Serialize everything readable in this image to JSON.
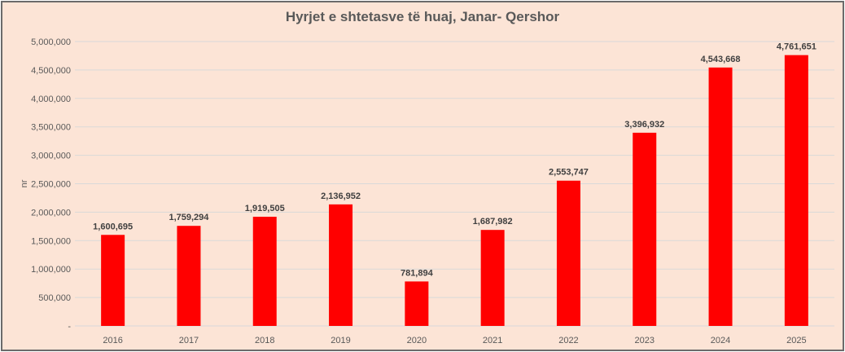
{
  "chart_data": {
    "type": "bar",
    "title": "Hyrjet e shtetasve të huaj, Janar- Qershor",
    "xlabel": "",
    "ylabel": "nr",
    "categories": [
      "2016",
      "2017",
      "2018",
      "2019",
      "2020",
      "2021",
      "2022",
      "2023",
      "2024",
      "2025"
    ],
    "values": [
      1600695,
      1759294,
      1919505,
      2136952,
      781894,
      1687982,
      2553747,
      3396932,
      4543668,
      4761651
    ],
    "value_labels": [
      "1,600,695",
      "1,759,294",
      "1,919,505",
      "2,136,952",
      "781,894",
      "1,687,982",
      "2,553,747",
      "3,396,932",
      "4,543,668",
      "4,761,651"
    ],
    "ylim": [
      0,
      5000000
    ],
    "yticks": [
      0,
      500000,
      1000000,
      1500000,
      2000000,
      2500000,
      3000000,
      3500000,
      4000000,
      4500000,
      5000000
    ],
    "ytick_labels": [
      "-",
      "500,000",
      "1,000,000",
      "1,500,000",
      "2,000,000",
      "2,500,000",
      "3,000,000",
      "3,500,000",
      "4,000,000",
      "4,500,000",
      "5,000,000"
    ],
    "grid": true,
    "legend": "none",
    "bar_color": "#ff0000",
    "background_color": "#fce4d6",
    "grid_color": "#d9d9d9"
  }
}
